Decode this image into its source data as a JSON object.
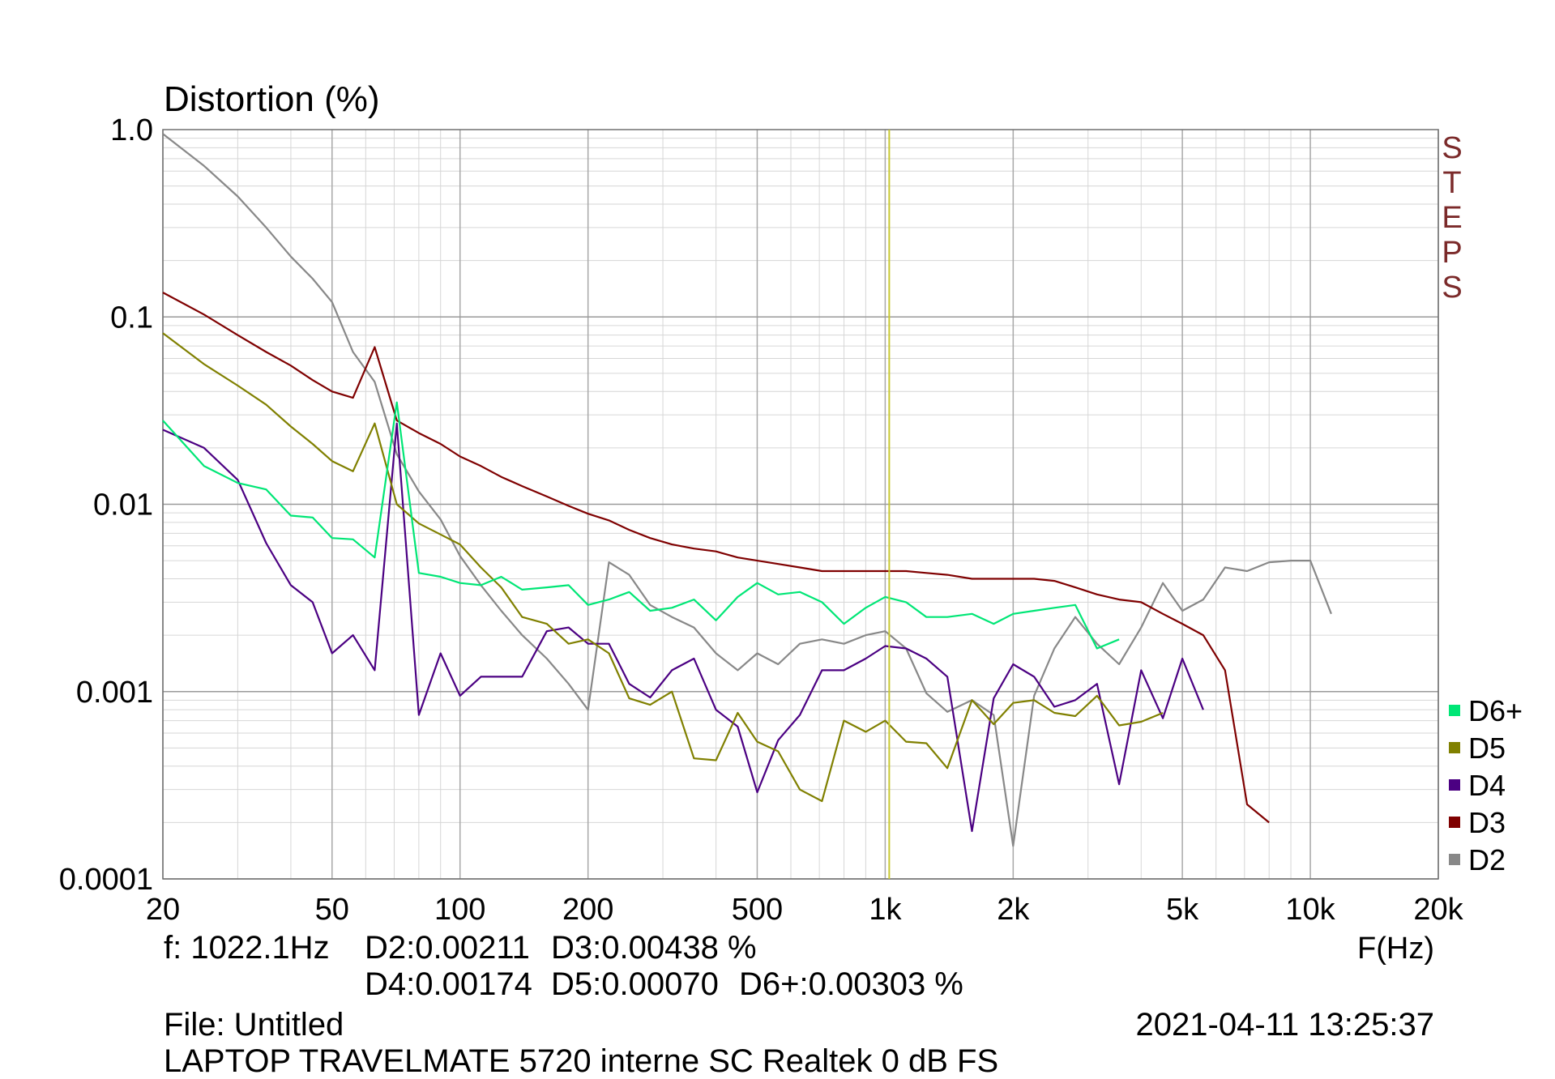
{
  "chart_data": {
    "type": "line",
    "title": "",
    "ylabel": "Distortion (%)",
    "xlabel": "F(Hz)",
    "xscale": "log",
    "yscale": "log",
    "xlim": [
      20,
      20000
    ],
    "ylim": [
      0.0001,
      1.0
    ],
    "x_tick_labels": [
      {
        "value": 20,
        "label": "20"
      },
      {
        "value": 50,
        "label": "50"
      },
      {
        "value": 100,
        "label": "100"
      },
      {
        "value": 200,
        "label": "200"
      },
      {
        "value": 500,
        "label": "500"
      },
      {
        "value": 1000,
        "label": "1k"
      },
      {
        "value": 2000,
        "label": "2k"
      },
      {
        "value": 5000,
        "label": "5k"
      },
      {
        "value": 10000,
        "label": "10k"
      },
      {
        "value": 20000,
        "label": "20k"
      }
    ],
    "y_tick_labels": [
      {
        "value": 1.0,
        "label": "1.0"
      },
      {
        "value": 0.1,
        "label": "0.1"
      },
      {
        "value": 0.01,
        "label": "0.01"
      },
      {
        "value": 0.001,
        "label": "0.001"
      },
      {
        "value": 0.0001,
        "label": "0.0001"
      }
    ],
    "grid": true,
    "legend_position": "bottom-right",
    "cursor": {
      "x": 1022.1,
      "color": "#c8c832"
    },
    "side_label": "STEPS",
    "side_label_color": "#7b2a2a",
    "series": [
      {
        "name": "D2",
        "color": "#888888",
        "x": [
          20,
          25,
          30,
          35,
          40,
          45,
          50,
          56,
          63,
          71,
          80,
          90,
          100,
          112,
          125,
          140,
          160,
          180,
          200,
          224,
          250,
          280,
          315,
          355,
          400,
          450,
          500,
          560,
          630,
          710,
          800,
          900,
          1000,
          1120,
          1250,
          1400,
          1600,
          1800,
          2000,
          2240,
          2500,
          2800,
          3150,
          3550,
          4000,
          4500,
          5000,
          5600,
          6300,
          7100,
          8000,
          9000,
          10000,
          11200
        ],
        "values": [
          0.95,
          0.64,
          0.44,
          0.3,
          0.21,
          0.16,
          0.12,
          0.065,
          0.045,
          0.0185,
          0.0117,
          0.0083,
          0.0053,
          0.0037,
          0.0027,
          0.002,
          0.0015,
          0.0011,
          0.0008,
          0.0049,
          0.0042,
          0.0029,
          0.0025,
          0.0022,
          0.0016,
          0.0013,
          0.0016,
          0.0014,
          0.0018,
          0.0019,
          0.0018,
          0.002,
          0.0021,
          0.0017,
          0.00098,
          0.00078,
          0.0009,
          0.00075,
          0.00015,
          0.00095,
          0.0017,
          0.0025,
          0.0018,
          0.0014,
          0.0022,
          0.0038,
          0.0027,
          0.0031,
          0.0046,
          0.0044,
          0.0049,
          0.005,
          0.005,
          0.0026
        ]
      },
      {
        "name": "D3",
        "color": "#7f0000",
        "x": [
          20,
          25,
          30,
          35,
          40,
          45,
          50,
          56,
          63,
          71,
          80,
          90,
          100,
          112,
          125,
          140,
          160,
          180,
          200,
          224,
          250,
          280,
          315,
          355,
          400,
          450,
          500,
          560,
          630,
          710,
          800,
          900,
          1000,
          1120,
          1250,
          1400,
          1600,
          1800,
          2000,
          2240,
          2500,
          2800,
          3150,
          3550,
          4000,
          4500,
          5000,
          5600,
          6300,
          7100,
          8000
        ],
        "values": [
          0.135,
          0.103,
          0.08,
          0.065,
          0.055,
          0.046,
          0.04,
          0.037,
          0.069,
          0.028,
          0.024,
          0.021,
          0.018,
          0.016,
          0.014,
          0.0125,
          0.011,
          0.0098,
          0.0089,
          0.0082,
          0.0073,
          0.0066,
          0.0061,
          0.0058,
          0.0056,
          0.0052,
          0.005,
          0.0048,
          0.0046,
          0.0044,
          0.0044,
          0.0044,
          0.0044,
          0.0044,
          0.0043,
          0.0042,
          0.004,
          0.004,
          0.004,
          0.004,
          0.0039,
          0.0036,
          0.0033,
          0.0031,
          0.003,
          0.0026,
          0.0023,
          0.002,
          0.0013,
          0.00025,
          0.0002
        ]
      },
      {
        "name": "D4",
        "color": "#4b0082",
        "x": [
          20,
          25,
          30,
          35,
          40,
          45,
          50,
          56,
          63,
          71,
          80,
          90,
          100,
          112,
          125,
          140,
          160,
          180,
          200,
          224,
          250,
          280,
          315,
          355,
          400,
          450,
          500,
          560,
          630,
          710,
          800,
          900,
          1000,
          1120,
          1250,
          1400,
          1600,
          1800,
          2000,
          2240,
          2500,
          2800,
          3150,
          3550,
          4000,
          4500,
          5000,
          5600
        ],
        "values": [
          0.025,
          0.02,
          0.0135,
          0.0062,
          0.0037,
          0.003,
          0.0016,
          0.002,
          0.0013,
          0.027,
          0.00075,
          0.0016,
          0.00095,
          0.0012,
          0.0012,
          0.0012,
          0.0021,
          0.0022,
          0.0018,
          0.0018,
          0.0011,
          0.00093,
          0.0013,
          0.0015,
          0.0008,
          0.00065,
          0.00029,
          0.00055,
          0.00075,
          0.0013,
          0.0013,
          0.0015,
          0.00175,
          0.0017,
          0.0015,
          0.0012,
          0.00018,
          0.00092,
          0.0014,
          0.0012,
          0.00083,
          0.0009,
          0.0011,
          0.00032,
          0.0013,
          0.00072,
          0.0015,
          0.0008
        ]
      },
      {
        "name": "D5",
        "color": "#808000",
        "x": [
          20,
          25,
          30,
          35,
          40,
          45,
          50,
          56,
          63,
          71,
          80,
          90,
          100,
          112,
          125,
          140,
          160,
          180,
          200,
          224,
          250,
          280,
          315,
          355,
          400,
          450,
          500,
          560,
          630,
          710,
          800,
          900,
          1000,
          1120,
          1250,
          1400,
          1600,
          1800,
          2000,
          2240,
          2500,
          2800,
          3150,
          3550,
          4000,
          4500
        ],
        "values": [
          0.082,
          0.056,
          0.043,
          0.034,
          0.026,
          0.021,
          0.017,
          0.015,
          0.027,
          0.01,
          0.0079,
          0.0069,
          0.0061,
          0.0046,
          0.0036,
          0.0025,
          0.0023,
          0.0018,
          0.0019,
          0.0016,
          0.00092,
          0.00085,
          0.001,
          0.00044,
          0.00043,
          0.00077,
          0.00054,
          0.00048,
          0.0003,
          0.00026,
          0.0007,
          0.00061,
          0.0007,
          0.00054,
          0.00053,
          0.00039,
          0.0009,
          0.00067,
          0.00087,
          0.0009,
          0.00077,
          0.00074,
          0.00095,
          0.00066,
          0.00069,
          0.00077
        ]
      },
      {
        "name": "D6+",
        "color": "#00e676",
        "x": [
          20,
          25,
          30,
          35,
          40,
          45,
          50,
          56,
          63,
          71,
          80,
          90,
          100,
          112,
          125,
          140,
          160,
          180,
          200,
          224,
          250,
          280,
          315,
          355,
          400,
          450,
          500,
          560,
          630,
          710,
          800,
          900,
          1000,
          1120,
          1250,
          1400,
          1600,
          1800,
          2000,
          2240,
          2500,
          2800,
          3150,
          3550
        ],
        "values": [
          0.028,
          0.016,
          0.013,
          0.012,
          0.0087,
          0.0085,
          0.0066,
          0.0065,
          0.0052,
          0.035,
          0.0043,
          0.0041,
          0.0038,
          0.0037,
          0.0041,
          0.0035,
          0.0036,
          0.0037,
          0.0029,
          0.0031,
          0.0034,
          0.0027,
          0.0028,
          0.0031,
          0.0024,
          0.0032,
          0.0038,
          0.0033,
          0.0034,
          0.003,
          0.0023,
          0.0028,
          0.0032,
          0.003,
          0.0025,
          0.0025,
          0.0026,
          0.0023,
          0.0026,
          0.0027,
          0.0028,
          0.0029,
          0.0017,
          0.0019
        ]
      }
    ],
    "legend_order": [
      "D6+",
      "D5",
      "D4",
      "D3",
      "D2"
    ]
  },
  "readout": {
    "line1_f": "f: 1022.1Hz",
    "line1_d2": "D2:0.00211",
    "line1_d3": "D3:0.00438 %",
    "line2_d4": "D4:0.00174",
    "line2_d5": "D5:0.00070",
    "line2_d6": "D6+:0.00303 %"
  },
  "footer": {
    "file": "File: Untitled",
    "timestamp": "2021-04-11 13:25:37",
    "description": "LAPTOP TRAVELMATE 5720 interne SC Realtek 0 dB FS"
  }
}
